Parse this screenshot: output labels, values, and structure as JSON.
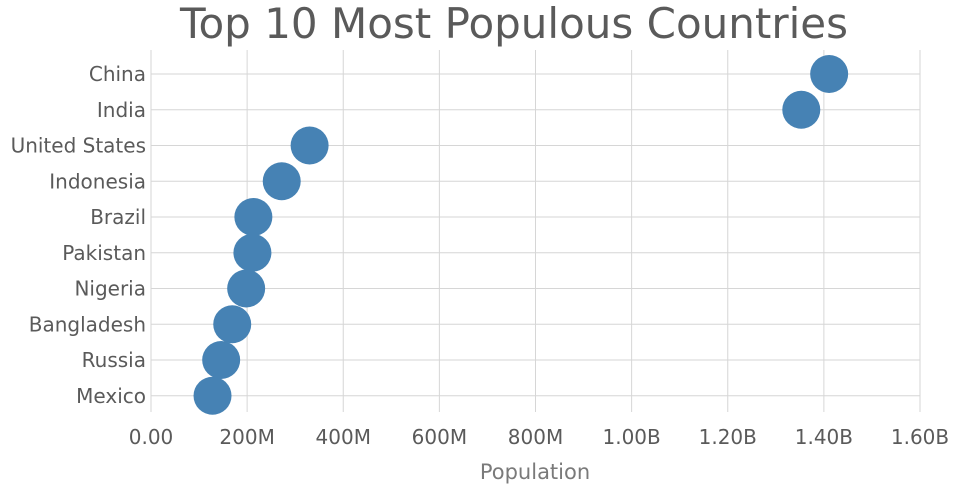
{
  "chart_data": {
    "type": "scatter",
    "title": "Top 10 Most Populous Countries",
    "xlabel": "Population",
    "ylabel": "",
    "xlim": [
      0,
      1600000000
    ],
    "x_tick_values": [
      0,
      200000000,
      400000000,
      600000000,
      800000000,
      1000000000,
      1200000000,
      1400000000,
      1600000000
    ],
    "x_tick_labels": [
      "0.00",
      "200M",
      "400M",
      "600M",
      "800M",
      "1.00B",
      "1.20B",
      "1.40B",
      "1.60B"
    ],
    "categories": [
      "China",
      "India",
      "United States",
      "Indonesia",
      "Brazil",
      "Pakistan",
      "Nigeria",
      "Bangladesh",
      "Russia",
      "Mexico"
    ],
    "values": [
      1411000000,
      1353000000,
      330000000,
      272000000,
      213000000,
      211000000,
      198000000,
      169000000,
      146000000,
      128000000
    ],
    "grid": true,
    "marker_color": "#4682b4"
  }
}
